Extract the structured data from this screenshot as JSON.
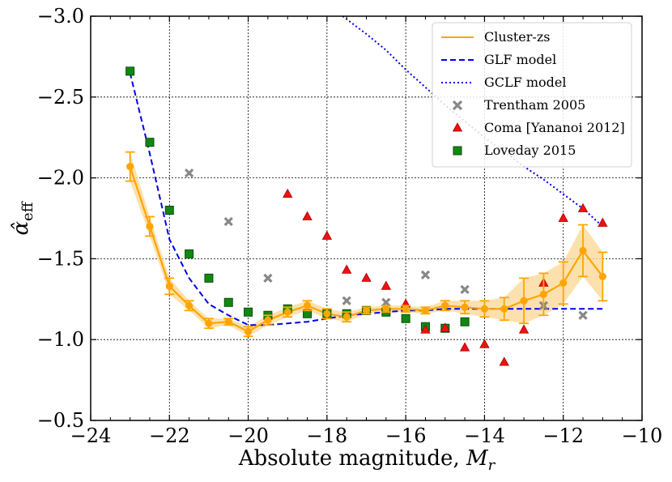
{
  "chart_data": {
    "type": "line",
    "xlabel": "Absolute magnitude, ",
    "xlabel_symbol": "M",
    "xlabel_subscript": "r",
    "ylabel_symbol": "α̂",
    "ylabel_subscript": "eff",
    "xlim": [
      -24,
      -10
    ],
    "ylim": [
      -0.5,
      -3.0
    ],
    "y_inverted": true,
    "grid": true,
    "grid_style": "dotted",
    "x_ticks": [
      -24,
      -22,
      -20,
      -18,
      -16,
      -14,
      -12,
      -10
    ],
    "x_tick_labels": [
      "−24",
      "−22",
      "−20",
      "−18",
      "−16",
      "−14",
      "−12",
      "−10"
    ],
    "y_ticks": [
      -3.0,
      -2.5,
      -2.0,
      -1.5,
      -1.0,
      -0.5
    ],
    "y_tick_labels": [
      "−3.0",
      "−2.5",
      "−2.0",
      "−1.5",
      "−1.0",
      "−0.5"
    ],
    "legend_position": "top-right",
    "colors": {
      "cluster": "#ffa500",
      "cluster_band": "#fbd99a",
      "glf": "#0000ee",
      "gclf": "#0000ee",
      "trentham": "#888888",
      "coma": "#ee1111",
      "loveday": "#118811"
    },
    "series": [
      {
        "name": "Cluster-zs",
        "style": "line-errorbar-band",
        "x": [
          -23.0,
          -22.5,
          -22.0,
          -21.5,
          -21.0,
          -20.5,
          -20.0,
          -19.5,
          -19.0,
          -18.5,
          -18.0,
          -17.5,
          -17.0,
          -16.5,
          -16.0,
          -15.5,
          -15.0,
          -14.5,
          -14.0,
          -13.5,
          -13.0,
          -12.5,
          -12.0,
          -11.5,
          -11.0
        ],
        "y": [
          -2.07,
          -1.7,
          -1.33,
          -1.21,
          -1.1,
          -1.11,
          -1.05,
          -1.12,
          -1.17,
          -1.21,
          -1.16,
          -1.14,
          -1.18,
          -1.19,
          -1.19,
          -1.18,
          -1.21,
          -1.2,
          -1.19,
          -1.19,
          -1.24,
          -1.28,
          -1.35,
          -1.55,
          -1.39
        ],
        "err": [
          0.09,
          0.06,
          0.05,
          0.03,
          0.03,
          0.02,
          0.03,
          0.03,
          0.03,
          0.03,
          0.03,
          0.03,
          0.02,
          0.02,
          0.02,
          0.02,
          0.03,
          0.04,
          0.05,
          0.07,
          0.14,
          0.13,
          0.13,
          0.16,
          0.15
        ]
      },
      {
        "name": "GLF model",
        "style": "dashed",
        "x": [
          -23.0,
          -22.5,
          -22.0,
          -21.5,
          -21.0,
          -20.5,
          -20.0,
          -19.5,
          -19.0,
          -18.5,
          -18.0,
          -17.5,
          -17.0,
          -16.5,
          -16.0,
          -15.5,
          -15.0,
          -14.5,
          -14.0,
          -13.5,
          -13.0,
          -12.5,
          -12.0,
          -11.5,
          -11.0
        ],
        "y": [
          -2.65,
          -2.15,
          -1.62,
          -1.38,
          -1.22,
          -1.15,
          -1.09,
          -1.09,
          -1.1,
          -1.11,
          -1.13,
          -1.15,
          -1.16,
          -1.17,
          -1.18,
          -1.18,
          -1.19,
          -1.19,
          -1.19,
          -1.19,
          -1.19,
          -1.19,
          -1.19,
          -1.19,
          -1.19
        ]
      },
      {
        "name": "GCLF model",
        "style": "dotted",
        "x": [
          -17.6,
          -17.0,
          -16.5,
          -16.0,
          -15.5,
          -15.0,
          -14.5,
          -14.0,
          -13.5,
          -13.0,
          -12.5,
          -12.0,
          -11.5,
          -11.0
        ],
        "y": [
          -3.0,
          -2.89,
          -2.79,
          -2.67,
          -2.56,
          -2.45,
          -2.35,
          -2.25,
          -2.16,
          -2.07,
          -1.99,
          -1.9,
          -1.81,
          -1.7
        ]
      },
      {
        "name": "Trentham 2005",
        "style": "marker-x",
        "x": [
          -21.5,
          -20.5,
          -19.5,
          -17.5,
          -16.5,
          -15.5,
          -14.5,
          -12.5,
          -11.5
        ],
        "y": [
          -2.03,
          -1.73,
          -1.38,
          -1.24,
          -1.23,
          -1.4,
          -1.31,
          -1.21,
          -1.15
        ]
      },
      {
        "name": "Coma [Yananoi 2012]",
        "style": "marker-triangle",
        "x": [
          -19.0,
          -18.5,
          -18.0,
          -17.5,
          -17.0,
          -16.5,
          -16.0,
          -15.5,
          -15.0,
          -14.5,
          -14.0,
          -13.5,
          -13.0,
          -12.5,
          -12.0,
          -11.5,
          -11.0
        ],
        "y": [
          -1.9,
          -1.76,
          -1.64,
          -1.43,
          -1.38,
          -1.33,
          -1.22,
          -1.06,
          -1.07,
          -0.95,
          -0.97,
          -0.86,
          -1.06,
          -1.35,
          -1.75,
          -1.81,
          -1.72
        ]
      },
      {
        "name": "Loveday 2015",
        "style": "marker-square",
        "x": [
          -23.0,
          -22.5,
          -22.0,
          -21.5,
          -21.0,
          -20.5,
          -20.0,
          -19.5,
          -19.0,
          -18.5,
          -18.0,
          -17.5,
          -17.0,
          -16.5,
          -16.0,
          -15.5,
          -15.0,
          -14.5
        ],
        "y": [
          -2.66,
          -2.22,
          -1.8,
          -1.53,
          -1.38,
          -1.23,
          -1.17,
          -1.15,
          -1.19,
          -1.16,
          -1.16,
          -1.16,
          -1.18,
          -1.17,
          -1.13,
          -1.08,
          -1.07,
          -1.11
        ]
      }
    ]
  }
}
